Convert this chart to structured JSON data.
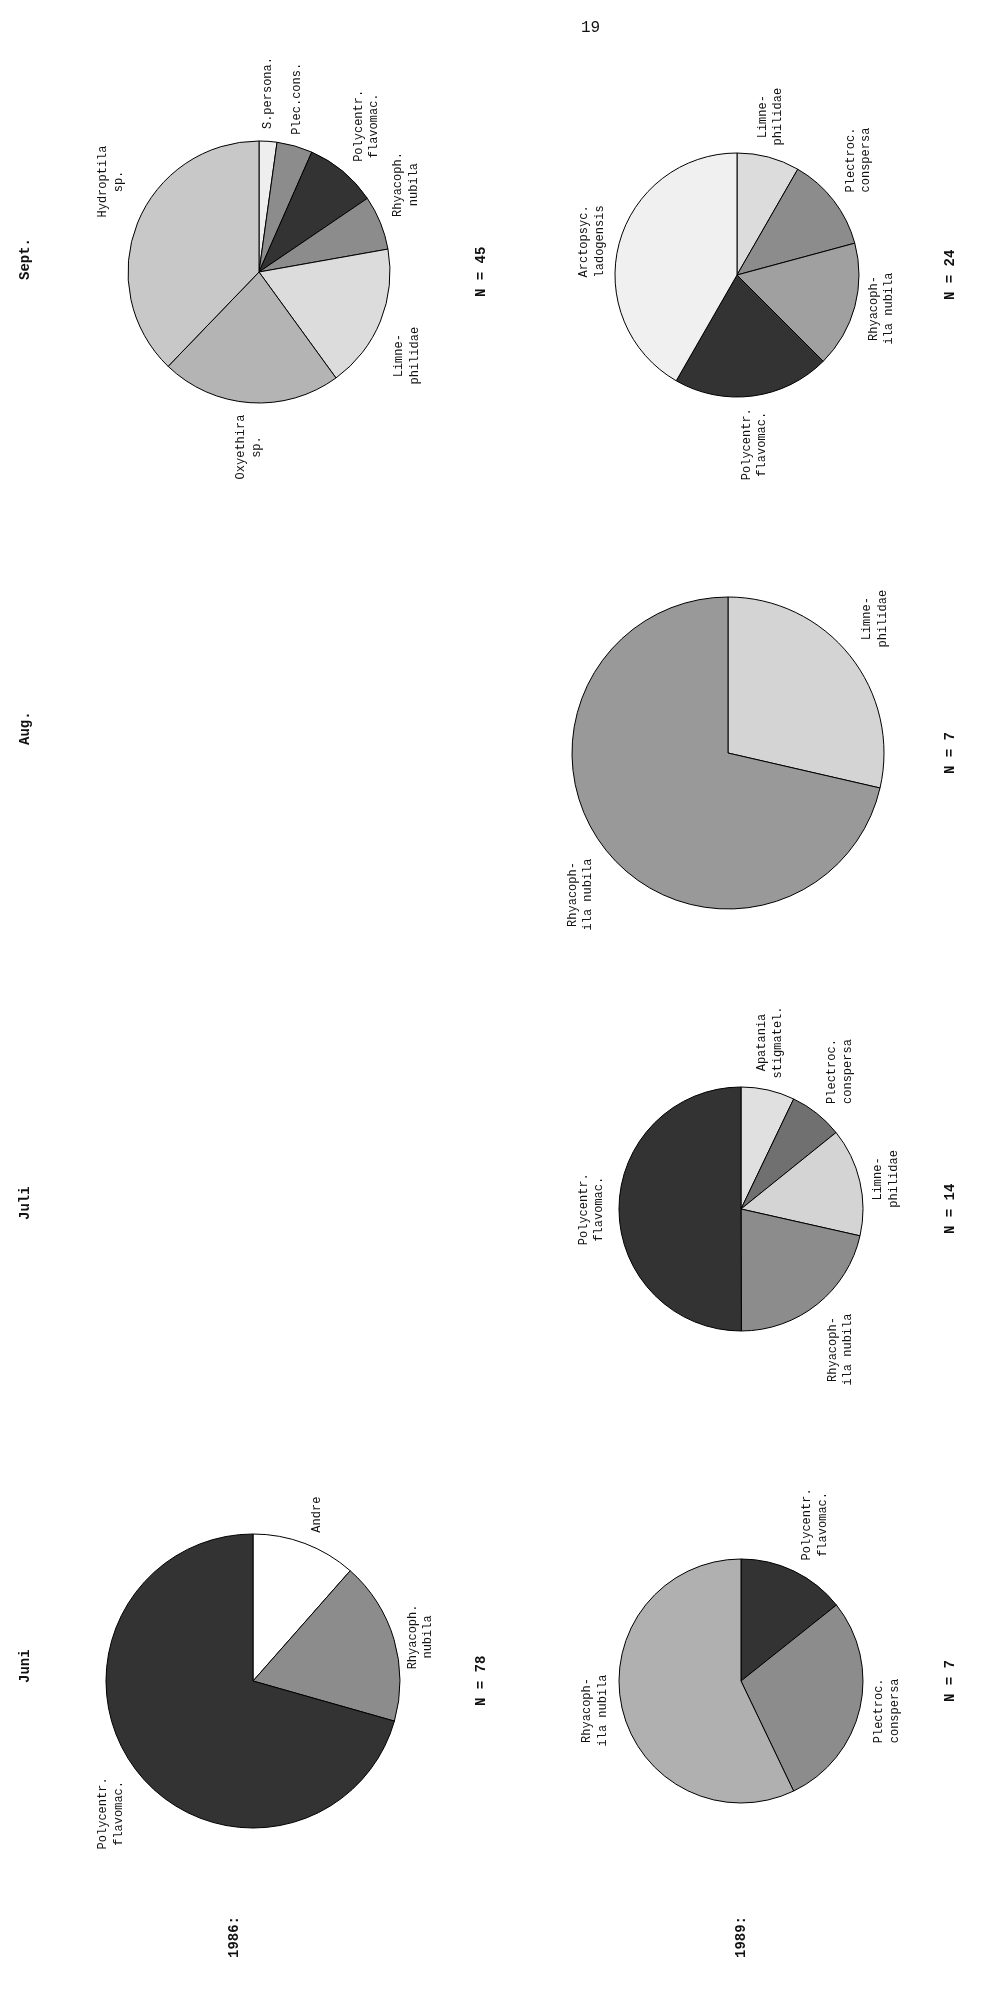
{
  "chart_data": [
    {
      "type": "other",
      "annotations": [
        "Juni",
        "Juli",
        "Aug.",
        "Sept.",
        "1986:",
        "1989:",
        "19"
      ]
    },
    {
      "type": "pie",
      "categories": [
        "Andre",
        "Rhyacoph.\nnubila",
        "Polycentr.\nflavomac."
      ],
      "values": [
        11.5,
        17.9,
        70.6
      ],
      "colors": [
        "#ffffff",
        "#8c8c8c",
        "#333333"
      ],
      "annotations": [
        "N = 78"
      ]
    },
    {
      "type": "pie",
      "categories": [
        "Polycentr.\nflavomac.",
        "Plectroc.\nconspersa",
        "Rhyacoph-\nila nubila"
      ],
      "values": [
        14.3,
        28.6,
        57.1
      ],
      "colors": [
        "#333333",
        "#8c8c8c",
        "#b0b0b0"
      ],
      "annotations": [
        "N = 7"
      ]
    },
    {
      "type": "pie",
      "categories": [
        "Apatania\nstigmatel.",
        "Plectroc.\nconspersa",
        "Limne-\nphilidae",
        "Rhyacoph-\nila nubila",
        "Polycentr.\nflavomac."
      ],
      "values": [
        7.1,
        7.1,
        14.3,
        21.4,
        50.0
      ],
      "colors": [
        "#e0e0e0",
        "#707070",
        "#d4d4d4",
        "#8c8c8c",
        "#333333"
      ],
      "annotations": [
        "N = 14"
      ]
    },
    {
      "type": "pie",
      "categories": [
        "Limne-\nphilidae",
        "Rhyacoph-\nila nubila"
      ],
      "values": [
        28.6,
        71.4
      ],
      "colors": [
        "#d4d4d4",
        "#999999"
      ],
      "annotations": [
        "N = 7"
      ]
    },
    {
      "type": "pie",
      "categories": [
        "S.persona.",
        "Plec.cons.",
        "Polycentr.\nflavomac.",
        "Rhyacoph.\nnubila",
        "Limne-\nphilidae",
        "Oxyethira\nsp.",
        "Hydroptila\nsp."
      ],
      "values": [
        2.2,
        4.4,
        8.9,
        6.7,
        17.8,
        22.2,
        37.8
      ],
      "colors": [
        "#eeeeee",
        "#8c8c8c",
        "#333333",
        "#8c8c8c",
        "#dcdcdc",
        "#b4b4b4",
        "#c8c8c8"
      ],
      "annotations": [
        "N = 45"
      ]
    },
    {
      "type": "pie",
      "categories": [
        "Limne-\nphilidae",
        "Plectroc.\nconspersa",
        "Rhyacoph-\nila nubila",
        "Polycentr.\nflavomac.",
        "Arctopsyc.\nladogensis"
      ],
      "values": [
        8.3,
        12.5,
        16.7,
        20.8,
        41.7
      ],
      "colors": [
        "#dcdcdc",
        "#8c8c8c",
        "#a0a0a0",
        "#333333",
        "#f0f0f0"
      ],
      "annotations": [
        "N = 24"
      ]
    }
  ]
}
